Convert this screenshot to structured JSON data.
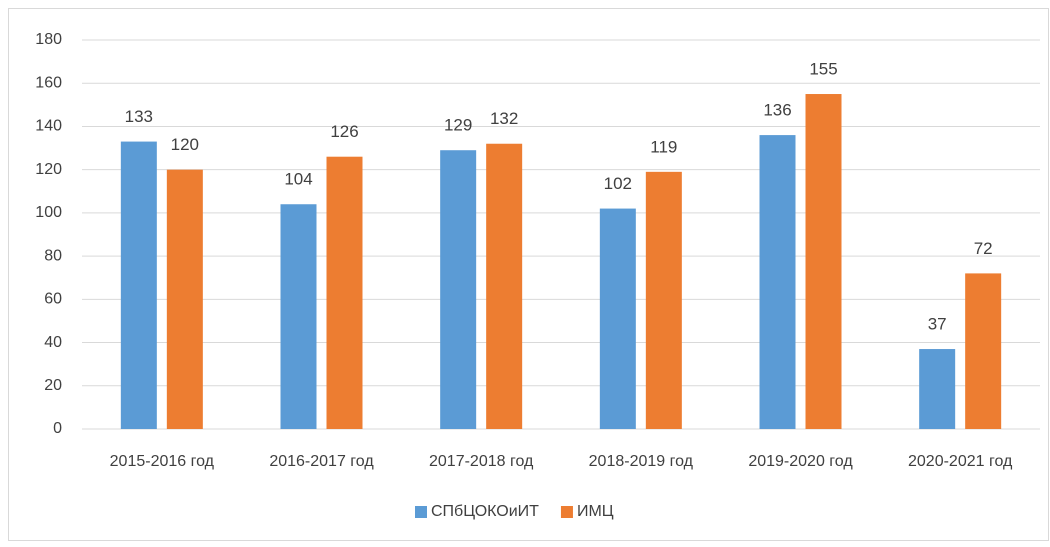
{
  "chart_data": {
    "type": "bar",
    "categories": [
      "2015-2016 год",
      "2016-2017 год",
      "2017-2018 год",
      "2018-2019 год",
      "2019-2020 год",
      "2020-2021 год"
    ],
    "series": [
      {
        "name": "СПбЦОКОиИТ",
        "color": "#5b9bd5",
        "values": [
          133,
          104,
          129,
          102,
          136,
          37
        ]
      },
      {
        "name": "ИМЦ",
        "color": "#ed7d31",
        "values": [
          120,
          126,
          132,
          119,
          155,
          72
        ]
      }
    ],
    "ylim": [
      0,
      180
    ],
    "yticks": [
      0,
      20,
      40,
      60,
      80,
      100,
      120,
      140,
      160,
      180
    ],
    "grid": true,
    "legend": "bottom"
  }
}
